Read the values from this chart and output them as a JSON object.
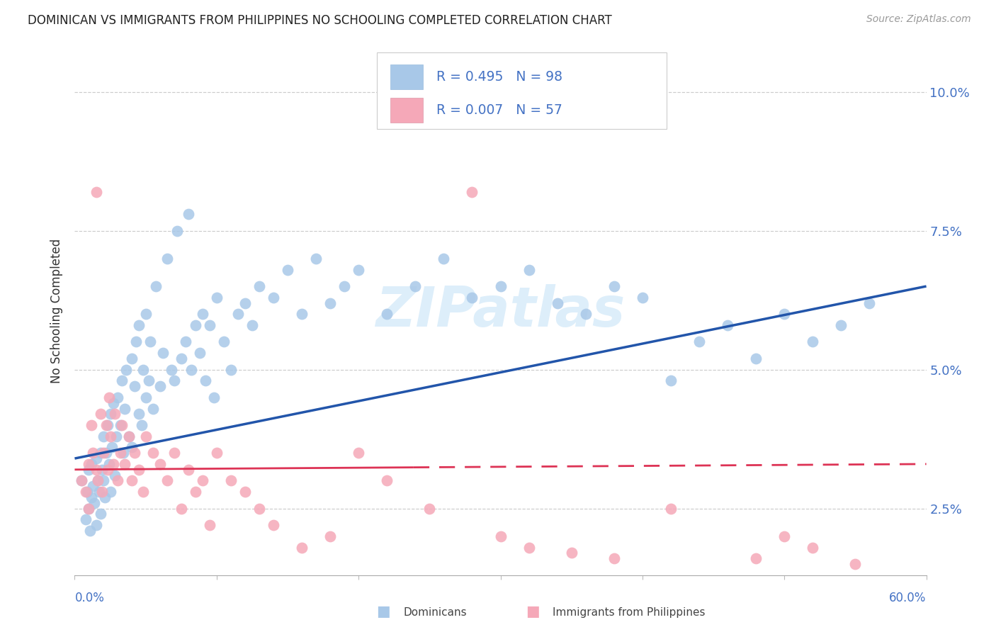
{
  "title": "DOMINICAN VS IMMIGRANTS FROM PHILIPPINES NO SCHOOLING COMPLETED CORRELATION CHART",
  "source": "Source: ZipAtlas.com",
  "ylabel": "No Schooling Completed",
  "yticks": [
    0.025,
    0.05,
    0.075,
    0.1
  ],
  "ytick_labels": [
    "2.5%",
    "5.0%",
    "7.5%",
    "10.0%"
  ],
  "xmin": 0.0,
  "xmax": 0.6,
  "ymin": 0.013,
  "ymax": 0.108,
  "legend_line1": "R = 0.495   N = 98",
  "legend_line2": "R = 0.007   N = 57",
  "legend_label1": "Dominicans",
  "legend_label2": "Immigrants from Philippines",
  "blue_scatter_color": "#a8c8e8",
  "pink_scatter_color": "#f5a8b8",
  "blue_line_color": "#2255aa",
  "pink_line_color": "#dd3355",
  "watermark_color": "#ddeefa",
  "grid_color": "#cccccc",
  "title_color": "#222222",
  "ylabel_color": "#333333",
  "axis_label_color": "#4472c4",
  "source_color": "#999999",
  "blue_trend_y0": 0.034,
  "blue_trend_y1": 0.065,
  "pink_trend_y0": 0.032,
  "pink_trend_y1": 0.033
}
